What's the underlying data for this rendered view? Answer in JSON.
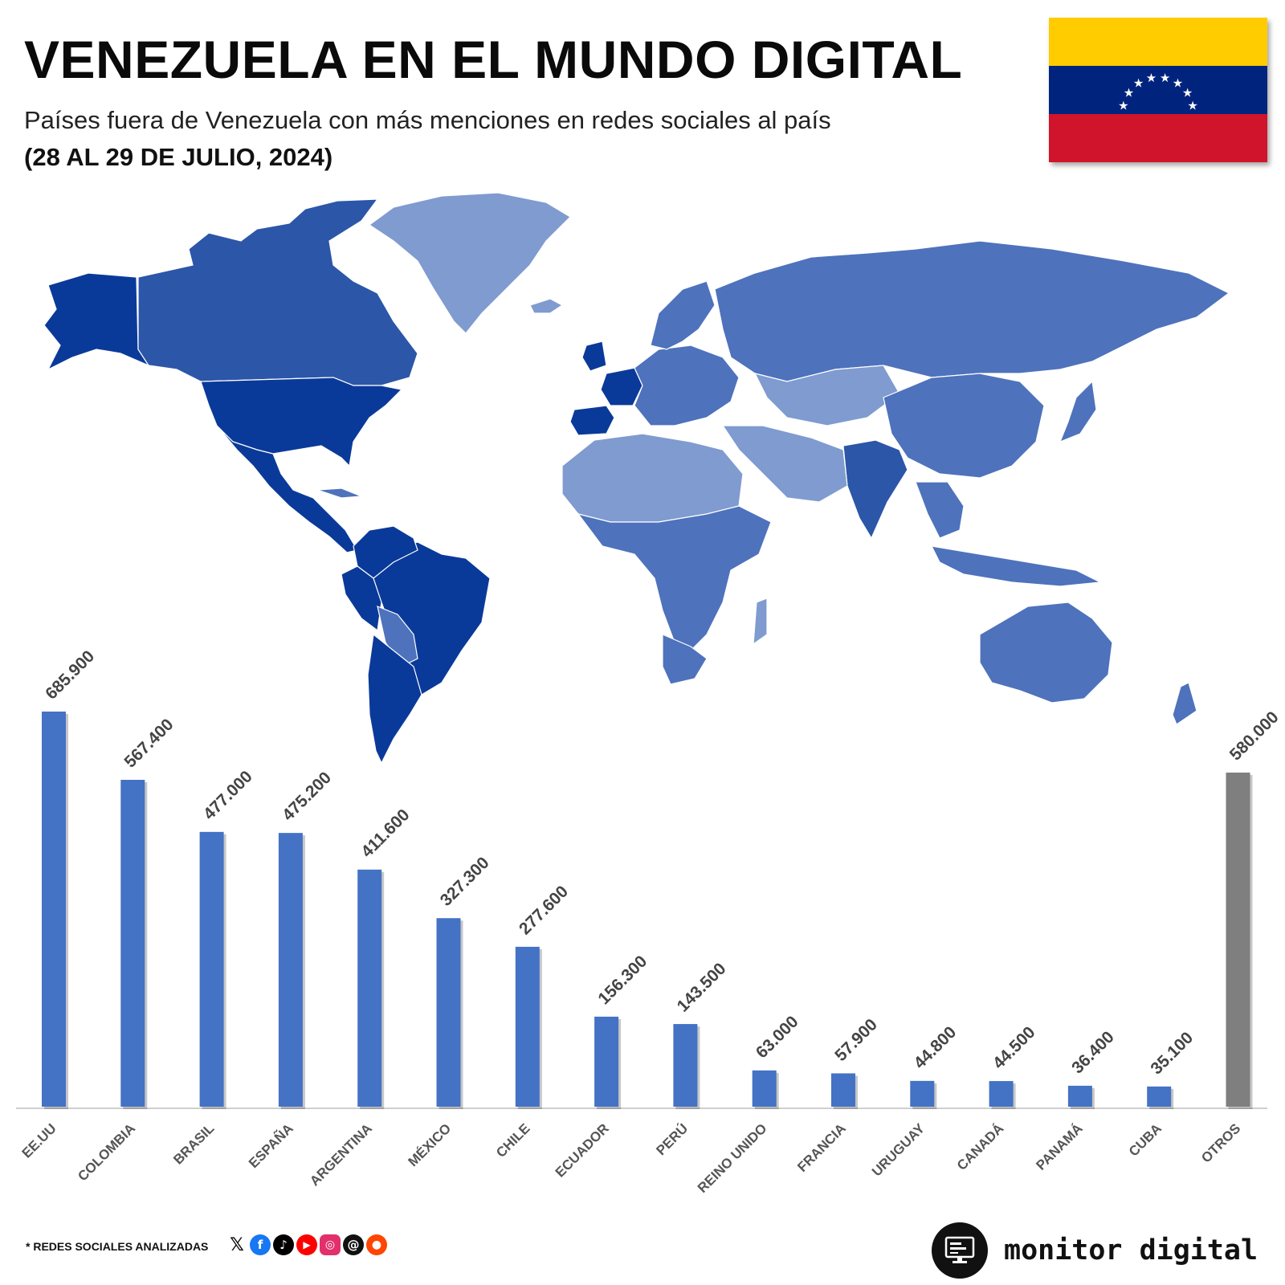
{
  "header": {
    "title": "VENEZUELA EN EL MUNDO DIGITAL",
    "subtitle": "Países fuera de Venezuela con más menciones en redes sociales al país",
    "date_range": "(28 AL 29 DE JULIO, 2024)"
  },
  "flag": {
    "colors": [
      "#FFCC00",
      "#00247D",
      "#CF142B"
    ],
    "star_color": "#ffffff"
  },
  "map": {
    "colors": {
      "darkest": "#0A3A99",
      "dark": "#2C56A8",
      "medium": "#4E72BC",
      "light": "#7F9BD0",
      "lightest": "#A9BDE3"
    }
  },
  "chart_data": {
    "type": "bar",
    "categories": [
      "EE.UU",
      "COLOMBIA",
      "BRASIL",
      "ESPAÑA",
      "ARGENTINA",
      "MÉXICO",
      "CHILE",
      "ECUADOR",
      "PERÚ",
      "REINO UNIDO",
      "FRANCIA",
      "URUGUAY",
      "CANADÁ",
      "PANAMÁ",
      "CUBA",
      "OTROS"
    ],
    "values": [
      685900,
      567400,
      477000,
      475200,
      411600,
      327300,
      277600,
      156300,
      143500,
      63000,
      57900,
      44800,
      44500,
      36400,
      35100,
      580000
    ],
    "value_labels": [
      "685.900",
      "567.400",
      "477.000",
      "475.200",
      "411.600",
      "327.300",
      "277.600",
      "156.300",
      "143.500",
      "63.000",
      "57.900",
      "44.800",
      "44.500",
      "36.400",
      "35.100",
      "580.000"
    ],
    "colors": {
      "default": "#4472C4",
      "other": "#7F7F7F"
    },
    "ylim": [
      0,
      685900
    ],
    "grid": false,
    "legend": "none"
  },
  "footer": {
    "footnote": "* REDES SOCIALES ANALIZADAS",
    "social_icons": [
      "x-icon",
      "facebook-icon",
      "tiktok-icon",
      "youtube-icon",
      "instagram-icon",
      "threads-icon",
      "reddit-icon"
    ],
    "brand": "monitor digital"
  }
}
